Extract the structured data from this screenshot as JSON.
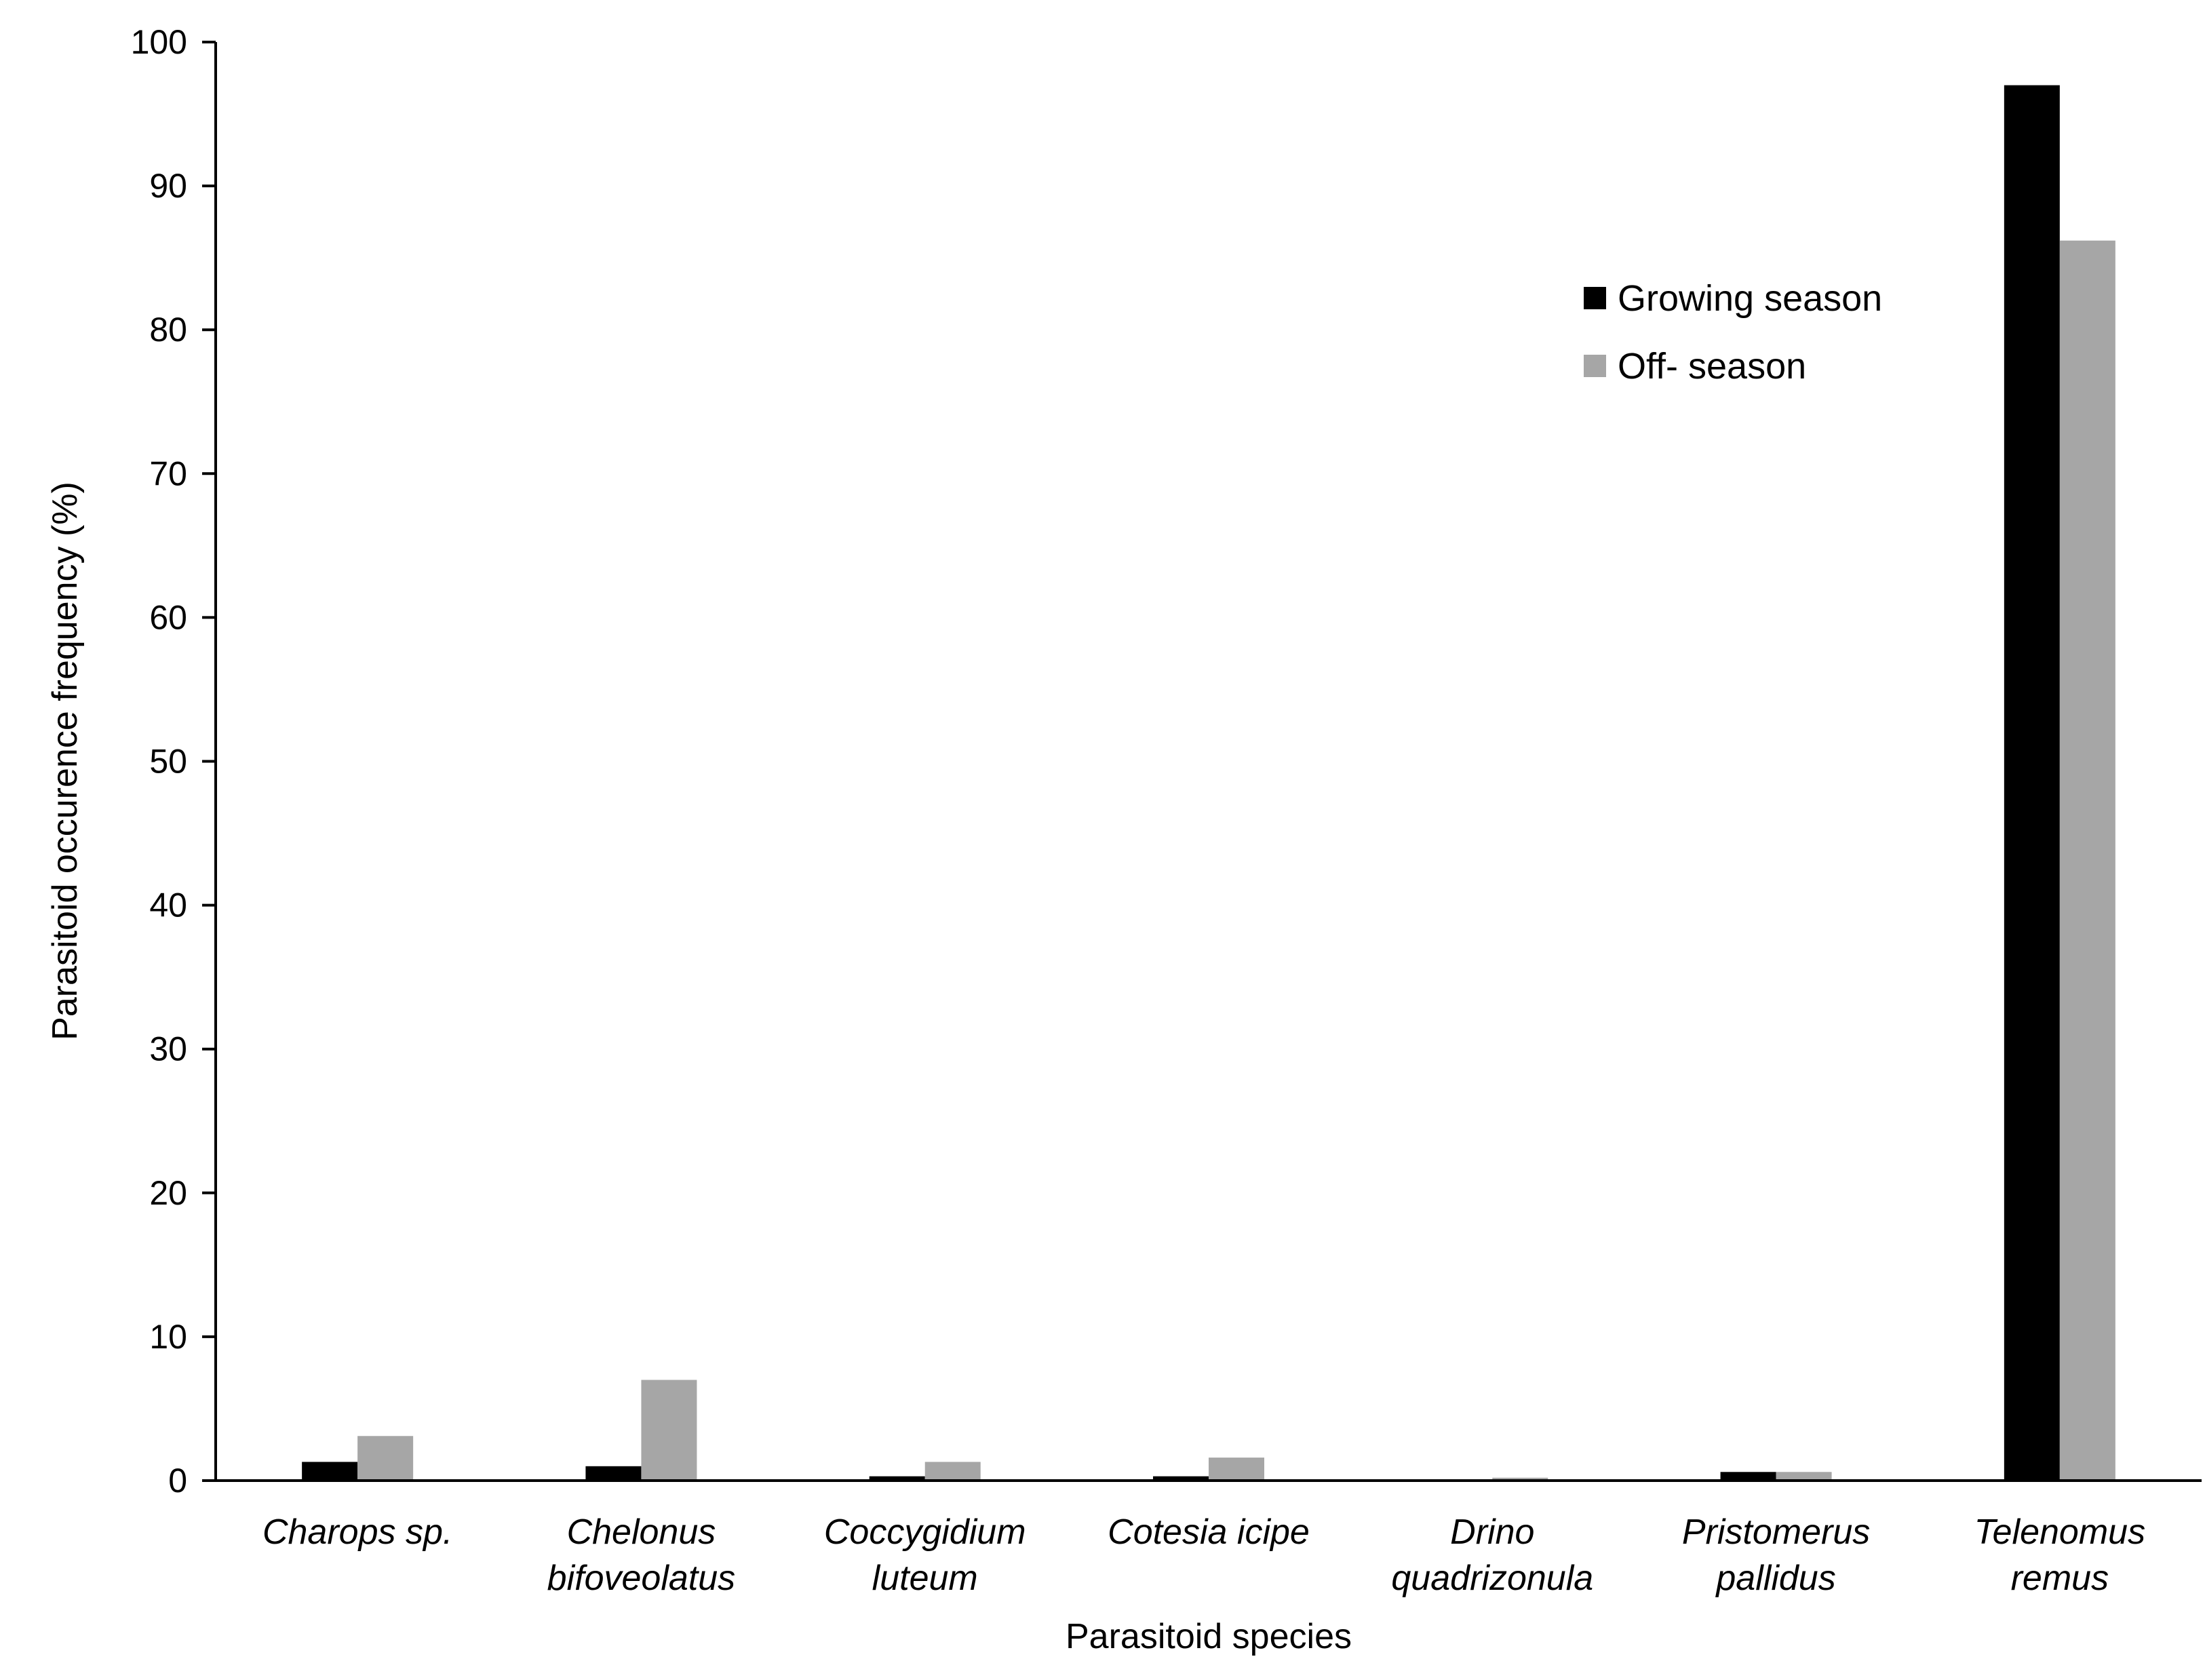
{
  "chart_data": {
    "type": "bar",
    "title": "",
    "xlabel": "Parasitoid species",
    "ylabel": "Parasitoid occurence  frequency (%)",
    "ylim": [
      0,
      100
    ],
    "yticks": [
      0,
      10,
      20,
      30,
      40,
      50,
      60,
      70,
      80,
      90,
      100
    ],
    "grid": false,
    "legend_position": "upper right, inside plot",
    "categories": [
      [
        "Charops sp."
      ],
      [
        "Chelonus",
        "bifoveolatus"
      ],
      [
        "Coccygidium",
        "luteum"
      ],
      [
        "Cotesia icipe"
      ],
      [
        "Drino",
        "quadrizonula"
      ],
      [
        "Pristomerus",
        "pallidus"
      ],
      [
        "Telenomus",
        "remus"
      ]
    ],
    "series": [
      {
        "name": "Growing season",
        "color": "#000000",
        "values": [
          1.3,
          1.0,
          0.3,
          0.3,
          0.0,
          0.6,
          97.0
        ]
      },
      {
        "name": "Off- season",
        "color": "#a6a6a6",
        "values": [
          3.1,
          7.0,
          1.3,
          1.6,
          0.2,
          0.6,
          86.2
        ]
      }
    ]
  }
}
